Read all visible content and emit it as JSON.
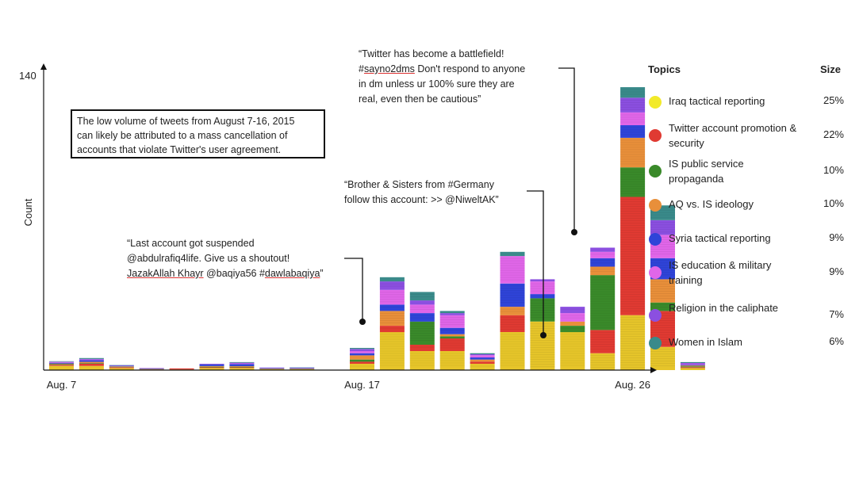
{
  "chart_data": {
    "type": "bar",
    "stacked": true,
    "ylabel": "Count",
    "y_tick": 140,
    "ylim": [
      0,
      140
    ],
    "x_tick_labels": [
      {
        "index": 0,
        "label": "Aug. 7"
      },
      {
        "index": 10,
        "label": "Aug. 17"
      },
      {
        "index": 19,
        "label": "Aug. 26"
      }
    ],
    "series": [
      {
        "color": "#e6c52a",
        "values": [
          2,
          2,
          1,
          0.3,
          0.3,
          1,
          1,
          0.4,
          0.4,
          0,
          3,
          18,
          9,
          9,
          3,
          18,
          23,
          18,
          8,
          26,
          11,
          1
        ]
      },
      {
        "color": "#e03a32",
        "values": [
          0.5,
          1,
          0.4,
          0.2,
          0.5,
          0.3,
          0.3,
          0.1,
          0.1,
          0,
          1,
          3,
          3,
          6,
          1,
          8,
          0,
          0,
          11,
          56,
          17,
          0.4
        ]
      },
      {
        "color": "#3a8a2a",
        "values": [
          0.3,
          0.3,
          0.2,
          0.1,
          0,
          0.3,
          0.3,
          0.1,
          0.1,
          0,
          1,
          0,
          11,
          1,
          0,
          0,
          11,
          3,
          26,
          14,
          4,
          0.4
        ]
      },
      {
        "color": "#e88f3a",
        "values": [
          0.3,
          0.6,
          0.2,
          0,
          0,
          0.3,
          0.3,
          0.1,
          0.1,
          0,
          2,
          7,
          0,
          1,
          1,
          4,
          0,
          2,
          4,
          14,
          11,
          0.4
        ]
      },
      {
        "color": "#2f44d8",
        "values": [
          0.4,
          0.8,
          0.3,
          0.2,
          0,
          0.8,
          1,
          0.3,
          0.3,
          0,
          1,
          3,
          4,
          3,
          1,
          11,
          2,
          0,
          4,
          6,
          10,
          0.4
        ]
      },
      {
        "color": "#e066e8",
        "values": [
          0.3,
          0.3,
          0.1,
          0.1,
          0,
          0,
          0.3,
          0.1,
          0.1,
          0,
          1,
          7,
          4,
          6,
          1,
          13,
          6,
          4,
          3,
          6,
          11,
          0.4
        ]
      },
      {
        "color": "#8b4fe0",
        "values": [
          0.2,
          0.3,
          0.1,
          0.1,
          0,
          0.3,
          0.3,
          0.1,
          0.1,
          0,
          1,
          4,
          2,
          1,
          0.5,
          0,
          1,
          3,
          2,
          7,
          7,
          0.4
        ]
      },
      {
        "color": "#3a8a8a",
        "values": [
          0.2,
          0.4,
          0.1,
          0,
          0,
          0,
          0.3,
          0,
          0.1,
          0,
          0.5,
          2,
          4,
          1,
          0.5,
          2,
          0,
          0,
          0,
          5,
          7,
          0.4
        ]
      }
    ]
  },
  "annotation_box": {
    "line1": "The low volume of tweets from August 7-16, 2015",
    "line2": "can likely be attributed to a mass cancellation of",
    "line3": "accounts that violate Twitter's user agreement."
  },
  "quotes": {
    "q1": {
      "line1": "“Last account got suspended",
      "line2": "@abdulrafiq4life. Give us a shoutout!",
      "line3_a": "JazakAllah Khayr",
      "line3_b": " @baqiya56 #",
      "line3_c": "dawlabaqiya",
      "line3_d": "”"
    },
    "q2": {
      "line1": "“Brother & Sisters from #Germany",
      "line2": "follow this account: >> @NiweltAK”"
    },
    "q3": {
      "line1": "“Twitter has become a battlefield!",
      "line2_a": "#",
      "line2_b": "sayno2dms",
      "line2_c": " Don't respond to anyone",
      "line3": "in dm unless ur 100% sure they are",
      "line4": "real, even then be cautious”"
    }
  },
  "legend": {
    "title": "Topics",
    "size_header": "Size",
    "items": [
      {
        "label": "Iraq tactical reporting",
        "size": "25%",
        "color": "#f2ea2a"
      },
      {
        "label": "Twitter account promotion & security",
        "size": "22%",
        "color": "#e03a32"
      },
      {
        "label": "IS public service propaganda",
        "size": "10%",
        "color": "#3a8a2a"
      },
      {
        "label": "AQ vs. IS ideology",
        "size": "10%",
        "color": "#e88f3a"
      },
      {
        "label": "Syria tactical reporting",
        "size": "9%",
        "color": "#2f44d8"
      },
      {
        "label": "IS education & military training",
        "size": "9%",
        "color": "#e066e8"
      },
      {
        "label": "Religion in the caliphate",
        "size": "7%",
        "color": "#8b4fe0"
      },
      {
        "label": "Women in Islam",
        "size": "6%",
        "color": "#3a8a8a"
      }
    ]
  }
}
